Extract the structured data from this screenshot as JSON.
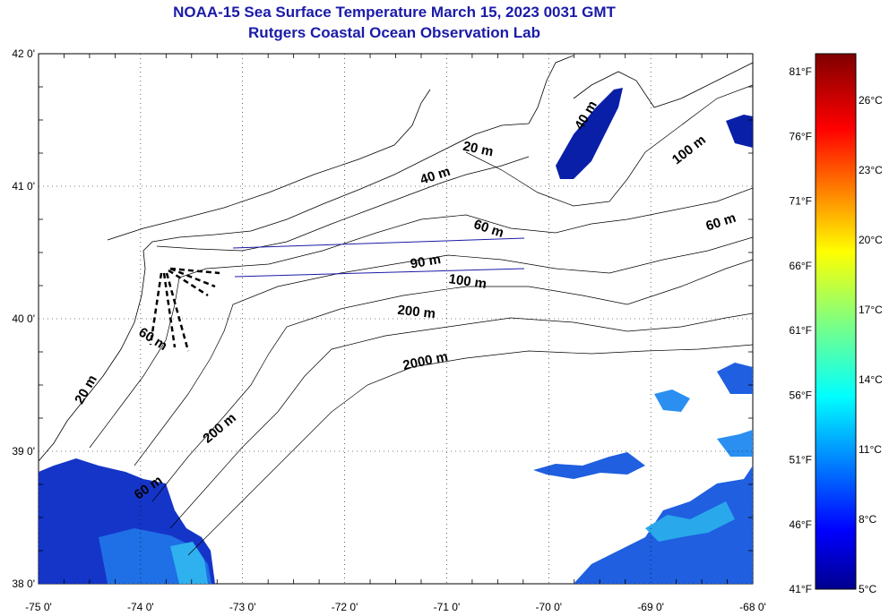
{
  "title": {
    "line1": "NOAA-15 Sea Surface Temperature March 15, 2023 0031 GMT",
    "line2": "Rutgers Coastal Ocean Observation Lab"
  },
  "map": {
    "lon_labels": [
      "-75 0'",
      "-74 0'",
      "-73 0'",
      "-72 0'",
      "-71 0'",
      "-70 0'",
      "-69 0'",
      "-68 0'"
    ],
    "lat_labels": [
      "42 0'",
      "41 0'",
      "40 0'",
      "39 0'",
      "38 0'"
    ],
    "lon_range": [
      -75,
      -68
    ],
    "lat_range": [
      38,
      42
    ],
    "grid": "dotted",
    "contour_labels": [
      {
        "text": "20 m",
        "lon": -70.7,
        "lat": 41.25,
        "angle": 12
      },
      {
        "text": "40 m",
        "lon": -71.1,
        "lat": 41.05,
        "angle": -18
      },
      {
        "text": "40 m",
        "lon": -69.6,
        "lat": 41.52,
        "angle": -60
      },
      {
        "text": "100 m",
        "lon": -68.6,
        "lat": 41.25,
        "angle": -38
      },
      {
        "text": "60 m",
        "lon": -68.3,
        "lat": 40.7,
        "angle": -18
      },
      {
        "text": "60 m",
        "lon": -70.6,
        "lat": 40.65,
        "angle": 18
      },
      {
        "text": "90 m",
        "lon": -71.2,
        "lat": 40.4,
        "angle": -10
      },
      {
        "text": "100 m",
        "lon": -70.8,
        "lat": 40.25,
        "angle": 8
      },
      {
        "text": "200 m",
        "lon": -71.3,
        "lat": 40.02,
        "angle": 6
      },
      {
        "text": "2000 m",
        "lon": -71.2,
        "lat": 39.65,
        "angle": -12
      },
      {
        "text": "60 m",
        "lon": -73.9,
        "lat": 39.82,
        "angle": 32
      },
      {
        "text": "20 m",
        "lon": -74.5,
        "lat": 39.45,
        "angle": -60
      },
      {
        "text": "200 m",
        "lon": -73.2,
        "lat": 39.15,
        "angle": -40
      },
      {
        "text": "60 m",
        "lon": -73.9,
        "lat": 38.7,
        "angle": -35
      }
    ]
  },
  "colorbar": {
    "f_labels": [
      "81°F",
      "76°F",
      "71°F",
      "66°F",
      "61°F",
      "56°F",
      "51°F",
      "46°F",
      "41°F"
    ],
    "f_values": [
      81,
      76,
      71,
      66,
      61,
      56,
      51,
      46,
      41
    ],
    "c_labels": [
      "26°C",
      "23°C",
      "20°C",
      "17°C",
      "14°C",
      "11°C",
      "8°C",
      "5°C"
    ],
    "c_values": [
      26,
      23,
      20,
      17,
      14,
      11,
      8,
      5
    ],
    "range_c": [
      5,
      28
    ],
    "colors": [
      "#00008f",
      "#0000ff",
      "#0080ff",
      "#00ffff",
      "#80ff80",
      "#ffff00",
      "#ff8000",
      "#ff0000",
      "#800000"
    ]
  }
}
